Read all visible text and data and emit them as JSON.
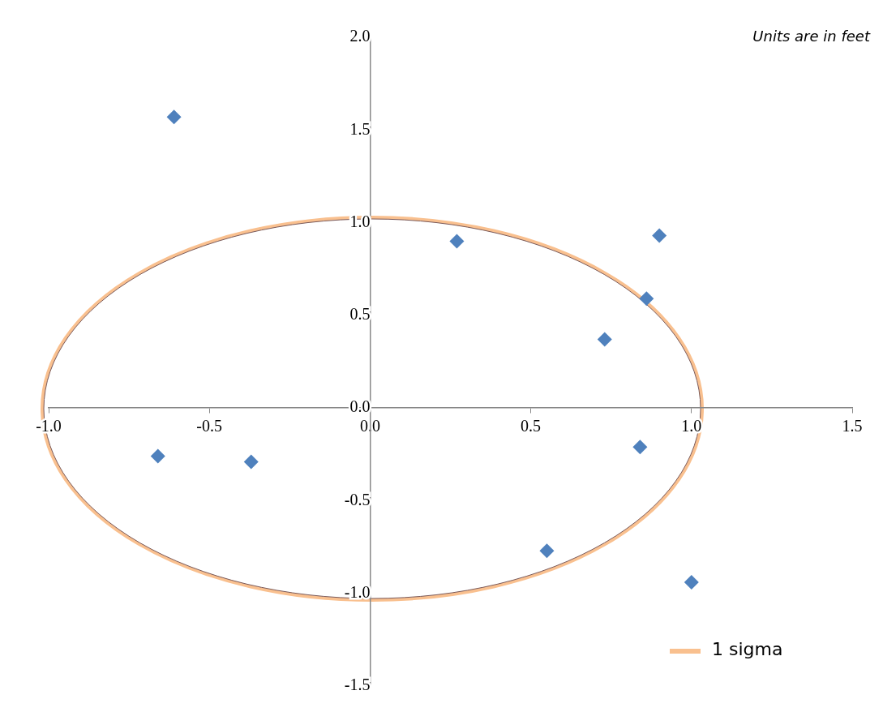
{
  "chart_data": {
    "type": "scatter",
    "annotations": [
      "Units are in feet",
      "1 sigma"
    ],
    "xlim": [
      -1.0,
      1.5
    ],
    "xticks": [
      {
        "value": -1.0,
        "label": "-1.0"
      },
      {
        "value": -0.5,
        "label": "-0.5"
      },
      {
        "value": 0,
        "label": "0.0"
      },
      {
        "value": 0.5,
        "label": "0.5"
      },
      {
        "value": 1.0,
        "label": "1.0"
      },
      {
        "value": 1.5,
        "label": "1.5"
      }
    ],
    "ylim": [
      -1.5,
      2.0
    ],
    "yticks": [
      {
        "value": -1.5,
        "label": "-1.5"
      },
      {
        "value": -1.0,
        "label": "-1.0"
      },
      {
        "value": -0.5,
        "label": "-0.5"
      },
      {
        "value": 0,
        "label": "0.0"
      },
      {
        "value": 0.5,
        "label": "0.5"
      },
      {
        "value": 1.0,
        "label": "1.0"
      },
      {
        "value": 1.5,
        "label": "1.5"
      },
      {
        "value": 2.0,
        "label": "2.0"
      }
    ],
    "grid": false,
    "series": [
      {
        "type": "scatter",
        "color": "#4f81bd",
        "marker": "diamond",
        "x": [
          -0.61,
          0.27,
          0.9,
          0.86,
          0.73,
          -0.66,
          -0.37,
          0.84,
          0.55,
          1.0
        ],
        "values": [
          1.57,
          0.9,
          0.93,
          0.59,
          0.37,
          -0.26,
          -0.29,
          -0.21,
          -0.77,
          -0.94
        ]
      }
    ]
  }
}
